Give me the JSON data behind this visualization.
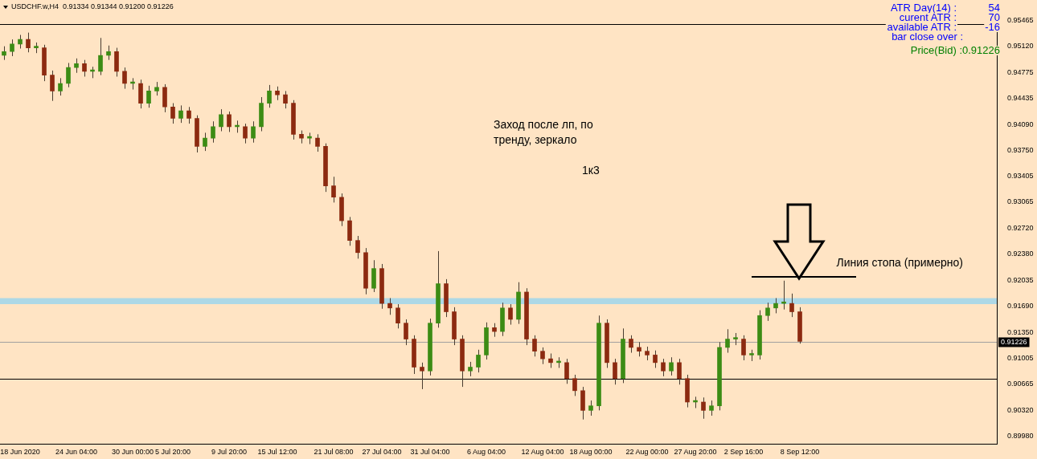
{
  "chart_data": {
    "type": "candlestick",
    "title": "USDCHF.w,H4  0.91334 0.91344 0.91200 0.91226",
    "categories": [
      null,
      null,
      "18 Jun 2020",
      null,
      null,
      null,
      null,
      null,
      null,
      "24 Jun 04:00",
      null,
      null,
      null,
      null,
      null,
      null,
      "30 Jun 00:00",
      null,
      null,
      null,
      null,
      "5 Jul 20:00",
      null,
      null,
      null,
      null,
      null,
      null,
      "9 Jul 20:00",
      null,
      null,
      null,
      null,
      null,
      "15 Jul 12:00",
      null,
      null,
      null,
      null,
      null,
      null,
      "21 Jul 08:00",
      null,
      null,
      null,
      null,
      null,
      "27 Jul 04:00",
      null,
      null,
      null,
      null,
      null,
      "31 Jul 04:00",
      null,
      null,
      null,
      null,
      null,
      null,
      "6 Aug 04:00",
      null,
      null,
      null,
      null,
      null,
      null,
      "12 Aug 04:00",
      null,
      null,
      null,
      null,
      null,
      "18 Aug 00:00",
      null,
      null,
      null,
      null,
      null,
      null,
      "22 Aug 00:00",
      null,
      null,
      null,
      null,
      null,
      "27 Aug 20:00",
      null,
      null,
      null,
      null,
      null,
      "2 Sep 16:00",
      null,
      null,
      null,
      null,
      null,
      null,
      "8 Sep 12:00",
      null,
      null,
      null,
      null,
      null,
      null,
      null,
      null,
      null,
      null,
      null,
      null,
      null,
      null,
      null,
      null,
      null,
      null,
      null,
      null,
      null,
      null,
      null,
      null
    ],
    "ohlc": [
      [
        0.95,
        0.9512,
        0.9494,
        0.9505
      ],
      [
        0.9505,
        0.9521,
        0.9499,
        0.9515
      ],
      [
        0.9515,
        0.9527,
        0.9509,
        0.9521
      ],
      [
        0.9521,
        0.953,
        0.9504,
        0.951
      ],
      [
        0.951,
        0.9517,
        0.9503,
        0.9512
      ],
      [
        0.951,
        0.9514,
        0.9466,
        0.9474
      ],
      [
        0.9474,
        0.948,
        0.944,
        0.9453
      ],
      [
        0.9453,
        0.947,
        0.9447,
        0.9463
      ],
      [
        0.9463,
        0.949,
        0.9458,
        0.9484
      ],
      [
        0.9484,
        0.9496,
        0.9477,
        0.9489
      ],
      [
        0.9489,
        0.9494,
        0.9472,
        0.9479
      ],
      [
        0.9479,
        0.9485,
        0.947,
        0.9481
      ],
      [
        0.9479,
        0.9523,
        0.9474,
        0.95
      ],
      [
        0.95,
        0.9513,
        0.9494,
        0.9505
      ],
      [
        0.9505,
        0.951,
        0.9472,
        0.9479
      ],
      [
        0.9479,
        0.9484,
        0.9456,
        0.9463
      ],
      [
        0.9463,
        0.947,
        0.9455,
        0.9465
      ],
      [
        0.9463,
        0.9468,
        0.943,
        0.9437
      ],
      [
        0.9437,
        0.946,
        0.9431,
        0.9453
      ],
      [
        0.9453,
        0.9465,
        0.9447,
        0.9458
      ],
      [
        0.9458,
        0.9462,
        0.9425,
        0.9432
      ],
      [
        0.9432,
        0.9437,
        0.941,
        0.9417
      ],
      [
        0.9417,
        0.9434,
        0.9411,
        0.9427
      ],
      [
        0.9427,
        0.9432,
        0.941,
        0.9417
      ],
      [
        0.9417,
        0.9421,
        0.9372,
        0.938
      ],
      [
        0.938,
        0.9398,
        0.9374,
        0.9391
      ],
      [
        0.9391,
        0.9413,
        0.9385,
        0.9406
      ],
      [
        0.9406,
        0.9429,
        0.94,
        0.9422
      ],
      [
        0.9422,
        0.9426,
        0.9399,
        0.9406
      ],
      [
        0.9406,
        0.9414,
        0.9398,
        0.9408
      ],
      [
        0.9406,
        0.941,
        0.9384,
        0.9391
      ],
      [
        0.9391,
        0.9413,
        0.9385,
        0.9406
      ],
      [
        0.9406,
        0.9445,
        0.94,
        0.9437
      ],
      [
        0.9437,
        0.9461,
        0.9431,
        0.9453
      ],
      [
        0.9453,
        0.9459,
        0.9441,
        0.9448
      ],
      [
        0.9448,
        0.9453,
        0.943,
        0.9437
      ],
      [
        0.9437,
        0.9441,
        0.9389,
        0.9396
      ],
      [
        0.9396,
        0.9401,
        0.9384,
        0.9391
      ],
      [
        0.9391,
        0.9398,
        0.9383,
        0.9393
      ],
      [
        0.9391,
        0.9396,
        0.9373,
        0.938
      ],
      [
        0.938,
        0.9384,
        0.932,
        0.9328
      ],
      [
        0.9328,
        0.934,
        0.9306,
        0.9313
      ],
      [
        0.9313,
        0.9318,
        0.9275,
        0.9282
      ],
      [
        0.9282,
        0.9287,
        0.9249,
        0.9256
      ],
      [
        0.9256,
        0.9262,
        0.9232,
        0.924
      ],
      [
        0.924,
        0.9246,
        0.9185,
        0.9193
      ],
      [
        0.9193,
        0.923,
        0.9188,
        0.9219
      ],
      [
        0.9219,
        0.9225,
        0.9166,
        0.9173
      ],
      [
        0.9173,
        0.918,
        0.9158,
        0.9167
      ],
      [
        0.9167,
        0.9172,
        0.914,
        0.9147
      ],
      [
        0.9147,
        0.9152,
        0.9118,
        0.9126
      ],
      [
        0.9126,
        0.9131,
        0.908,
        0.9089
      ],
      [
        0.9089,
        0.9095,
        0.906,
        0.9084
      ],
      [
        0.9084,
        0.9153,
        0.9078,
        0.9147
      ],
      [
        0.9147,
        0.9242,
        0.9141,
        0.9199
      ],
      [
        0.9199,
        0.9205,
        0.9155,
        0.9162
      ],
      [
        0.9162,
        0.9168,
        0.9118,
        0.9126
      ],
      [
        0.9126,
        0.9131,
        0.9063,
        0.9084
      ],
      [
        0.9084,
        0.9096,
        0.9077,
        0.9089
      ],
      [
        0.9089,
        0.9112,
        0.9082,
        0.9105
      ],
      [
        0.9105,
        0.9148,
        0.9099,
        0.9141
      ],
      [
        0.9141,
        0.9147,
        0.9129,
        0.9136
      ],
      [
        0.9136,
        0.9174,
        0.913,
        0.9167
      ],
      [
        0.9167,
        0.9172,
        0.9145,
        0.9152
      ],
      [
        0.9152,
        0.9201,
        0.9146,
        0.9188
      ],
      [
        0.9188,
        0.9193,
        0.9118,
        0.9126
      ],
      [
        0.9126,
        0.9131,
        0.9103,
        0.911
      ],
      [
        0.911,
        0.9115,
        0.9093,
        0.91
      ],
      [
        0.91,
        0.9107,
        0.9088,
        0.9095
      ],
      [
        0.9095,
        0.9102,
        0.9088,
        0.9097
      ],
      [
        0.9095,
        0.91,
        0.9067,
        0.9074
      ],
      [
        0.9074,
        0.9079,
        0.9051,
        0.9058
      ],
      [
        0.9058,
        0.9063,
        0.902,
        0.9032
      ],
      [
        0.9032,
        0.9045,
        0.9025,
        0.9038
      ],
      [
        0.9038,
        0.9157,
        0.9032,
        0.9147
      ],
      [
        0.9147,
        0.9152,
        0.9088,
        0.9095
      ],
      [
        0.9095,
        0.91,
        0.9066,
        0.9074
      ],
      [
        0.9074,
        0.914,
        0.9068,
        0.9126
      ],
      [
        0.9126,
        0.9131,
        0.9108,
        0.9115
      ],
      [
        0.9115,
        0.9122,
        0.9103,
        0.911
      ],
      [
        0.911,
        0.9116,
        0.9098,
        0.9105
      ],
      [
        0.9105,
        0.9111,
        0.9088,
        0.9095
      ],
      [
        0.9095,
        0.91,
        0.9077,
        0.9084
      ],
      [
        0.9084,
        0.9102,
        0.9078,
        0.9095
      ],
      [
        0.9095,
        0.91,
        0.9066,
        0.9074
      ],
      [
        0.9074,
        0.9079,
        0.9036,
        0.9043
      ],
      [
        0.9043,
        0.905,
        0.9035,
        0.9045
      ],
      [
        0.9043,
        0.9049,
        0.9021,
        0.9032
      ],
      [
        0.9032,
        0.9045,
        0.9025,
        0.9038
      ],
      [
        0.9038,
        0.9122,
        0.9032,
        0.9115
      ],
      [
        0.9115,
        0.9139,
        0.9108,
        0.9126
      ],
      [
        0.9126,
        0.9134,
        0.9118,
        0.9128
      ],
      [
        0.9126,
        0.9131,
        0.9098,
        0.9105
      ],
      [
        0.9105,
        0.9112,
        0.9097,
        0.9107
      ],
      [
        0.9105,
        0.9164,
        0.9099,
        0.9157
      ],
      [
        0.9157,
        0.9174,
        0.915,
        0.9167
      ],
      [
        0.9167,
        0.918,
        0.916,
        0.9173
      ],
      [
        0.9173,
        0.9203,
        0.9165,
        0.9175
      ],
      [
        0.9173,
        0.9186,
        0.9155,
        0.9162
      ],
      [
        0.9162,
        0.9168,
        0.912,
        0.9123
      ],
      null,
      null,
      null,
      null,
      null,
      null,
      null,
      null,
      null,
      null,
      null,
      null,
      null,
      null,
      null,
      null,
      null,
      null,
      null,
      null,
      null,
      null,
      null,
      null
    ],
    "colors": [
      "#3c8c14",
      "#3c8c14",
      "#3c8c14",
      "#8c2a10",
      "#3c8c14",
      "#8c2a10",
      "#8c2a10",
      "#3c8c14",
      "#3c8c14",
      "#3c8c14",
      "#8c2a10",
      "#3c8c14",
      "#3c8c14",
      "#3c8c14",
      "#8c2a10",
      "#8c2a10",
      "#3c8c14",
      "#8c2a10",
      "#3c8c14",
      "#3c8c14",
      "#8c2a10",
      "#8c2a10",
      "#3c8c14",
      "#8c2a10",
      "#8c2a10",
      "#3c8c14",
      "#3c8c14",
      "#3c8c14",
      "#8c2a10",
      "#3c8c14",
      "#8c2a10",
      "#3c8c14",
      "#3c8c14",
      "#3c8c14",
      "#8c2a10",
      "#8c2a10",
      "#8c2a10",
      "#8c2a10",
      "#3c8c14",
      "#8c2a10",
      "#8c2a10",
      "#8c2a10",
      "#8c2a10",
      "#8c2a10",
      "#8c2a10",
      "#8c2a10",
      "#3c8c14",
      "#8c2a10",
      "#8c2a10",
      "#8c2a10",
      "#8c2a10",
      "#8c2a10",
      "#8c2a10",
      "#3c8c14",
      "#3c8c14",
      "#8c2a10",
      "#8c2a10",
      "#8c2a10",
      "#3c8c14",
      "#3c8c14",
      "#3c8c14",
      "#8c2a10",
      "#3c8c14",
      "#8c2a10",
      "#3c8c14",
      "#8c2a10",
      "#8c2a10",
      "#8c2a10",
      "#8c2a10",
      "#3c8c14",
      "#8c2a10",
      "#8c2a10",
      "#8c2a10",
      "#3c8c14",
      "#3c8c14",
      "#8c2a10",
      "#8c2a10",
      "#3c8c14",
      "#8c2a10",
      "#8c2a10",
      "#8c2a10",
      "#8c2a10",
      "#8c2a10",
      "#3c8c14",
      "#8c2a10",
      "#8c2a10",
      "#3c8c14",
      "#8c2a10",
      "#3c8c14",
      "#3c8c14",
      "#3c8c14",
      "#3c8c14",
      "#8c2a10",
      "#3c8c14",
      "#3c8c14",
      "#3c8c14",
      "#3c8c14",
      "#3c8c14",
      "#8c2a10",
      "#8c2a10",
      null,
      null,
      null,
      null,
      null,
      null,
      null,
      null,
      null,
      null,
      null,
      null,
      null,
      null,
      null,
      null,
      null,
      null,
      null,
      null,
      null,
      null,
      null,
      null
    ],
    "series": [
      {
        "type": "line",
        "name": "Линия стопа (примерно)",
        "color": "#000000",
        "values": [
          null,
          null,
          null,
          null,
          null,
          null,
          null,
          null,
          null,
          null,
          null,
          null,
          null,
          null,
          null,
          null,
          null,
          null,
          null,
          null,
          null,
          null,
          null,
          null,
          null,
          null,
          null,
          null,
          null,
          null,
          null,
          null,
          null,
          null,
          null,
          null,
          null,
          null,
          null,
          null,
          null,
          null,
          null,
          null,
          null,
          null,
          null,
          null,
          null,
          null,
          null,
          null,
          null,
          null,
          null,
          null,
          null,
          null,
          null,
          null,
          null,
          null,
          null,
          null,
          null,
          null,
          null,
          null,
          null,
          null,
          null,
          null,
          null,
          null,
          null,
          null,
          null,
          null,
          null,
          null,
          null,
          null,
          null,
          null,
          null,
          null,
          null,
          null,
          null,
          null,
          null,
          null,
          null,
          0.9208,
          null,
          null,
          null,
          null,
          null,
          null,
          null,
          null,
          null,
          null,
          null,
          null,
          0.9208,
          null,
          null,
          null,
          null,
          null,
          null,
          null,
          null,
          null,
          null,
          null,
          null,
          null,
          null,
          null,
          null,
          null
        ]
      }
    ],
    "ylim": [
      0.8988,
      0.9562
    ],
    "yticks": [
      {
        "value": 0.8998,
        "label": "0.89980"
      },
      {
        "value": 0.9032,
        "label": "0.90320"
      },
      0.90665,
      0.91005,
      {
        "value": 0.9135,
        "label": "0.91350"
      },
      {
        "value": 0.9169,
        "label": "0.91690"
      },
      0.92035,
      {
        "value": 0.9238,
        "label": "0.92380"
      },
      {
        "value": 0.9272,
        "label": "0.92720"
      },
      0.93065,
      0.93405,
      {
        "value": 0.9375,
        "label": "0.93750"
      },
      {
        "value": 0.9409,
        "label": "0.94090"
      },
      0.94435,
      0.94775,
      {
        "value": 0.9512,
        "label": "0.95120"
      },
      0.95465
    ],
    "ref_lines": [
      {
        "axis": "y",
        "value": 0.95413,
        "color": "#000000"
      },
      {
        "axis": "y",
        "value": 0.90739,
        "color": "#000000"
      },
      {
        "axis": "y",
        "value": 0.91226,
        "label": "0.91226",
        "color": "#a0a0a0"
      }
    ],
    "bands": [
      {
        "axis": "y",
        "from": 0.9172,
        "to": 0.918,
        "color": "#add8e6"
      }
    ],
    "annotations": [
      "Заход после лп, по тренду, зеркало",
      "1к3",
      "ATR Day(14) :",
      "54",
      "curent ATR :",
      "70",
      "available ATR :",
      "-16",
      "bar close over :",
      "Price(Bid) :0.91226"
    ]
  }
}
